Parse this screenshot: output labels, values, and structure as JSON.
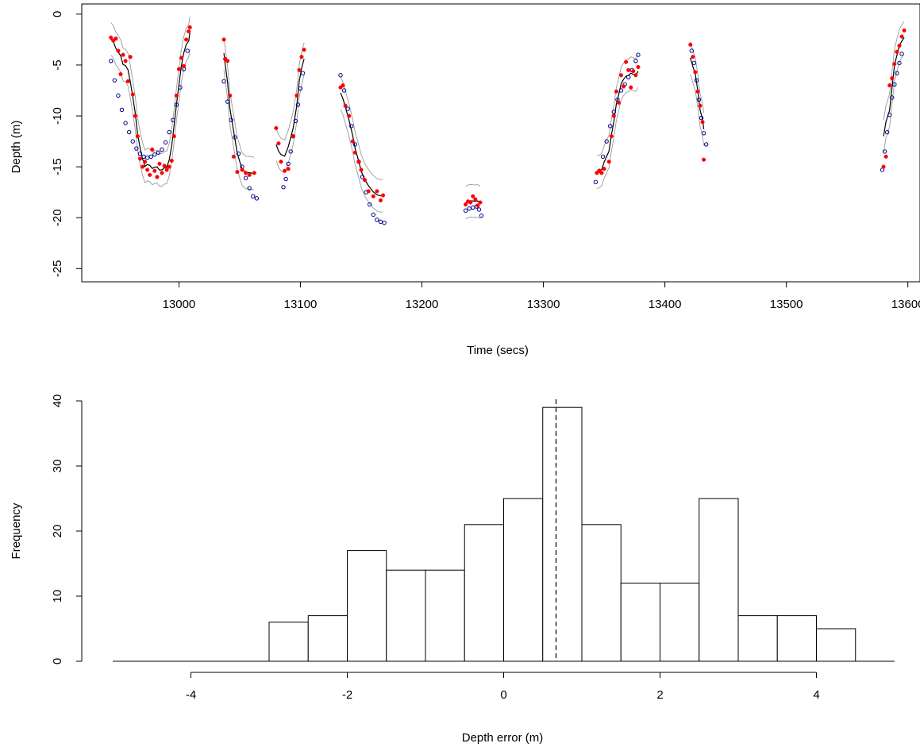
{
  "colors": {
    "observed": "#ff0000",
    "predicted": "#00008b",
    "model": "#000000",
    "interval": "#9a9a9a",
    "bars": "#ffffff"
  },
  "chart_data": [
    {
      "type": "scatter",
      "title": "",
      "xlabel": "Time (secs)",
      "ylabel": "Depth (m)",
      "xlim": [
        12920,
        13610
      ],
      "ylim": [
        -26.3,
        1.0
      ],
      "xticks": [
        13000,
        13100,
        13200,
        13300,
        13400,
        13500,
        13600
      ],
      "yticks": [
        0,
        -5,
        -10,
        -15,
        -20,
        -25
      ],
      "xtick_labels": [
        "13000",
        "13100",
        "13200",
        "13300",
        "13400",
        "13500",
        "13600"
      ],
      "ytick_labels": [
        "0",
        "-5",
        "-10",
        "-15",
        "-20",
        "-25"
      ],
      "grid": false,
      "series": [
        {
          "style": "red-filled-points",
          "points": [
            [
              12944,
              -2.3
            ],
            [
              12946,
              -2.6
            ],
            [
              12948,
              -2.4
            ],
            [
              12950,
              -3.6
            ],
            [
              12952,
              -5.9
            ],
            [
              12954,
              -4.0
            ],
            [
              12956,
              -4.6
            ],
            [
              12958,
              -6.6
            ],
            [
              12960,
              -4.2
            ],
            [
              12962,
              -7.9
            ],
            [
              12964,
              -10.0
            ],
            [
              12966,
              -12.0
            ],
            [
              12968,
              -14.2
            ],
            [
              12970,
              -15.0
            ],
            [
              12972,
              -14.5
            ],
            [
              12974,
              -15.3
            ],
            [
              12976,
              -15.8
            ],
            [
              12978,
              -13.3
            ],
            [
              12980,
              -15.4
            ],
            [
              12982,
              -16.0
            ],
            [
              12984,
              -14.7
            ],
            [
              12986,
              -15.6
            ],
            [
              12988,
              -14.9
            ],
            [
              12990,
              -15.3
            ],
            [
              12992,
              -15.0
            ],
            [
              12994,
              -14.4
            ],
            [
              12996,
              -12.0
            ],
            [
              12998,
              -8.0
            ],
            [
              13000,
              -5.4
            ],
            [
              13002,
              -4.3
            ],
            [
              13004,
              -5.1
            ],
            [
              13006,
              -2.5
            ],
            [
              13008,
              -1.7
            ],
            [
              13009,
              -1.3
            ],
            [
              13037,
              -2.5
            ],
            [
              13038,
              -4.4
            ],
            [
              13040,
              -4.6
            ],
            [
              13042,
              -8.0
            ],
            [
              13045,
              -14.0
            ],
            [
              13048,
              -15.5
            ],
            [
              13052,
              -15.3
            ],
            [
              13055,
              -15.6
            ],
            [
              13058,
              -15.8
            ],
            [
              13062,
              -15.6
            ],
            [
              13080,
              -11.2
            ],
            [
              13082,
              -12.7
            ],
            [
              13084,
              -14.5
            ],
            [
              13087,
              -15.4
            ],
            [
              13090,
              -15.2
            ],
            [
              13094,
              -12.0
            ],
            [
              13097,
              -8.0
            ],
            [
              13099,
              -5.5
            ],
            [
              13101,
              -4.2
            ],
            [
              13103,
              -3.5
            ],
            [
              13133,
              -7.2
            ],
            [
              13135,
              -7.0
            ],
            [
              13137,
              -9.0
            ],
            [
              13140,
              -10.0
            ],
            [
              13143,
              -12.5
            ],
            [
              13145,
              -13.6
            ],
            [
              13148,
              -14.5
            ],
            [
              13150,
              -15.3
            ],
            [
              13153,
              -16.3
            ],
            [
              13156,
              -17.4
            ],
            [
              13160,
              -17.9
            ],
            [
              13163,
              -17.4
            ],
            [
              13166,
              -18.3
            ],
            [
              13168,
              -17.8
            ],
            [
              13236,
              -18.7
            ],
            [
              13238,
              -18.4
            ],
            [
              13240,
              -18.5
            ],
            [
              13242,
              -17.9
            ],
            [
              13244,
              -18.2
            ],
            [
              13246,
              -18.8
            ],
            [
              13248,
              -18.5
            ],
            [
              13344,
              -15.6
            ],
            [
              13346,
              -15.4
            ],
            [
              13348,
              -15.6
            ],
            [
              13350,
              -15.2
            ],
            [
              13354,
              -14.5
            ],
            [
              13356,
              -12.0
            ],
            [
              13358,
              -10.0
            ],
            [
              13360,
              -7.6
            ],
            [
              13362,
              -8.7
            ],
            [
              13364,
              -6.0
            ],
            [
              13366,
              -7.1
            ],
            [
              13368,
              -4.7
            ],
            [
              13370,
              -5.5
            ],
            [
              13372,
              -7.2
            ],
            [
              13374,
              -5.6
            ],
            [
              13376,
              -6.0
            ],
            [
              13378,
              -5.2
            ],
            [
              13421,
              -3.0
            ],
            [
              13423,
              -4.2
            ],
            [
              13425,
              -5.7
            ],
            [
              13427,
              -7.6
            ],
            [
              13429,
              -9.0
            ],
            [
              13431,
              -10.6
            ],
            [
              13432,
              -14.3
            ],
            [
              13580,
              -15.0
            ],
            [
              13582,
              -14.0
            ],
            [
              13585,
              -7.0
            ],
            [
              13587,
              -6.3
            ],
            [
              13589,
              -4.9
            ],
            [
              13591,
              -3.7
            ],
            [
              13593,
              -3.1
            ],
            [
              13595,
              -2.2
            ],
            [
              13597,
              -1.6
            ]
          ]
        },
        {
          "style": "blue-open-points",
          "points": [
            [
              12944,
              -4.6
            ],
            [
              12947,
              -6.5
            ],
            [
              12950,
              -8.0
            ],
            [
              12953,
              -9.4
            ],
            [
              12956,
              -10.7
            ],
            [
              12959,
              -11.6
            ],
            [
              12962,
              -12.5
            ],
            [
              12965,
              -13.2
            ],
            [
              12968,
              -13.7
            ],
            [
              12971,
              -14.0
            ],
            [
              12974,
              -14.1
            ],
            [
              12977,
              -14.0
            ],
            [
              12980,
              -13.8
            ],
            [
              12983,
              -13.6
            ],
            [
              12986,
              -13.3
            ],
            [
              12989,
              -12.6
            ],
            [
              12992,
              -11.6
            ],
            [
              12995,
              -10.4
            ],
            [
              12998,
              -8.9
            ],
            [
              13001,
              -7.2
            ],
            [
              13004,
              -5.4
            ],
            [
              13007,
              -3.6
            ],
            [
              13037,
              -6.6
            ],
            [
              13040,
              -8.6
            ],
            [
              13043,
              -10.4
            ],
            [
              13046,
              -12.1
            ],
            [
              13049,
              -13.7
            ],
            [
              13052,
              -15.0
            ],
            [
              13055,
              -16.1
            ],
            [
              13058,
              -17.1
            ],
            [
              13061,
              -17.9
            ],
            [
              13064,
              -18.1
            ],
            [
              13086,
              -17.0
            ],
            [
              13088,
              -16.2
            ],
            [
              13090,
              -14.7
            ],
            [
              13092,
              -13.5
            ],
            [
              13094,
              -12.0
            ],
            [
              13096,
              -10.5
            ],
            [
              13098,
              -8.9
            ],
            [
              13100,
              -7.3
            ],
            [
              13102,
              -5.8
            ],
            [
              13133,
              -6.0
            ],
            [
              13136,
              -7.5
            ],
            [
              13139,
              -9.3
            ],
            [
              13142,
              -11.0
            ],
            [
              13145,
              -12.8
            ],
            [
              13148,
              -14.5
            ],
            [
              13151,
              -16.0
            ],
            [
              13154,
              -17.5
            ],
            [
              13157,
              -18.7
            ],
            [
              13160,
              -19.7
            ],
            [
              13163,
              -20.2
            ],
            [
              13166,
              -20.4
            ],
            [
              13169,
              -20.5
            ],
            [
              13236,
              -19.3
            ],
            [
              13239,
              -19.1
            ],
            [
              13242,
              -19.0
            ],
            [
              13245,
              -18.9
            ],
            [
              13247,
              -19.2
            ],
            [
              13249,
              -19.8
            ],
            [
              13343,
              -16.5
            ],
            [
              13346,
              -15.4
            ],
            [
              13349,
              -14.0
            ],
            [
              13352,
              -12.5
            ],
            [
              13355,
              -11.0
            ],
            [
              13358,
              -9.6
            ],
            [
              13361,
              -8.4
            ],
            [
              13364,
              -7.5
            ],
            [
              13367,
              -6.9
            ],
            [
              13370,
              -6.2
            ],
            [
              13373,
              -5.5
            ],
            [
              13376,
              -4.6
            ],
            [
              13378,
              -4.0
            ],
            [
              13422,
              -3.6
            ],
            [
              13424,
              -4.8
            ],
            [
              13426,
              -6.5
            ],
            [
              13428,
              -8.4
            ],
            [
              13430,
              -10.2
            ],
            [
              13432,
              -11.7
            ],
            [
              13434,
              -12.8
            ],
            [
              13579,
              -15.3
            ],
            [
              13581,
              -13.5
            ],
            [
              13583,
              -11.6
            ],
            [
              13585,
              -9.9
            ],
            [
              13587,
              -8.2
            ],
            [
              13589,
              -6.9
            ],
            [
              13591,
              -5.8
            ],
            [
              13593,
              -4.8
            ],
            [
              13595,
              -3.9
            ]
          ]
        }
      ]
    },
    {
      "type": "bar",
      "title": "",
      "xlabel": "Depth error (m)",
      "ylabel": "Frequency",
      "xlim": [
        -5,
        5
      ],
      "ylim": [
        0,
        40
      ],
      "xticks": [
        -4,
        -2,
        0,
        2,
        4
      ],
      "yticks": [
        0,
        10,
        20,
        30,
        40
      ],
      "xtick_labels": [
        "-4",
        "-2",
        "0",
        "2",
        "4"
      ],
      "ytick_labels": [
        "0",
        "10",
        "20",
        "30",
        "40"
      ],
      "bins": [
        {
          "left": -3.0,
          "right": -2.5,
          "count": 6
        },
        {
          "left": -2.5,
          "right": -2.0,
          "count": 7
        },
        {
          "left": -2.0,
          "right": -1.5,
          "count": 17
        },
        {
          "left": -1.5,
          "right": -1.0,
          "count": 14
        },
        {
          "left": -1.0,
          "right": -0.5,
          "count": 14
        },
        {
          "left": -0.5,
          "right": 0.0,
          "count": 21
        },
        {
          "left": 0.0,
          "right": 0.5,
          "count": 25
        },
        {
          "left": 0.5,
          "right": 1.0,
          "count": 39
        },
        {
          "left": 1.0,
          "right": 1.5,
          "count": 21
        },
        {
          "left": 1.5,
          "right": 2.0,
          "count": 12
        },
        {
          "left": 2.0,
          "right": 2.5,
          "count": 12
        },
        {
          "left": 2.5,
          "right": 3.0,
          "count": 25
        },
        {
          "left": 3.0,
          "right": 3.5,
          "count": 7
        },
        {
          "left": 3.5,
          "right": 4.0,
          "count": 7
        },
        {
          "left": 4.0,
          "right": 4.5,
          "count": 5
        }
      ],
      "vline": 0.67,
      "vline_style": "dashed"
    }
  ]
}
